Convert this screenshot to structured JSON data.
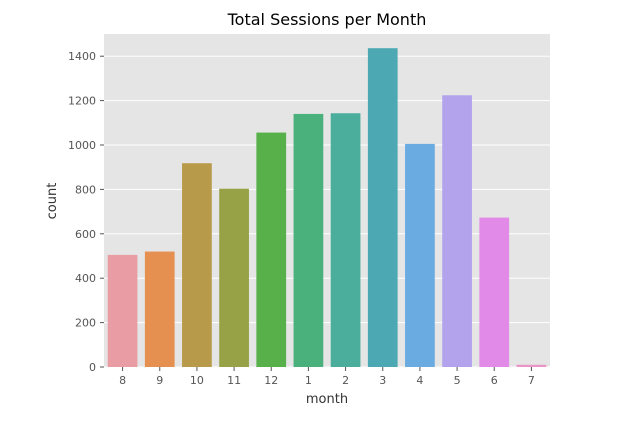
{
  "chart_data": {
    "type": "bar",
    "title": "Total Sessions per Month",
    "xlabel": "month",
    "ylabel": "count",
    "categories": [
      "8",
      "9",
      "10",
      "11",
      "12",
      "1",
      "2",
      "3",
      "4",
      "5",
      "6",
      "7"
    ],
    "values": [
      505,
      520,
      918,
      803,
      1056,
      1140,
      1143,
      1436,
      1005,
      1224,
      673,
      10
    ],
    "colors": [
      "#e99ca4",
      "#e58f51",
      "#b89b4a",
      "#96a245",
      "#58b04a",
      "#4ab17d",
      "#4bae9d",
      "#4ca9b4",
      "#6aace2",
      "#b3a3ed",
      "#e28ae8",
      "#ea94c8"
    ],
    "ylim": [
      0,
      1500
    ],
    "yticks": [
      0,
      200,
      400,
      600,
      800,
      1000,
      1200,
      1400
    ],
    "grid": true,
    "plot_background": "#e5e5e5",
    "grid_color": "#ffffff"
  }
}
